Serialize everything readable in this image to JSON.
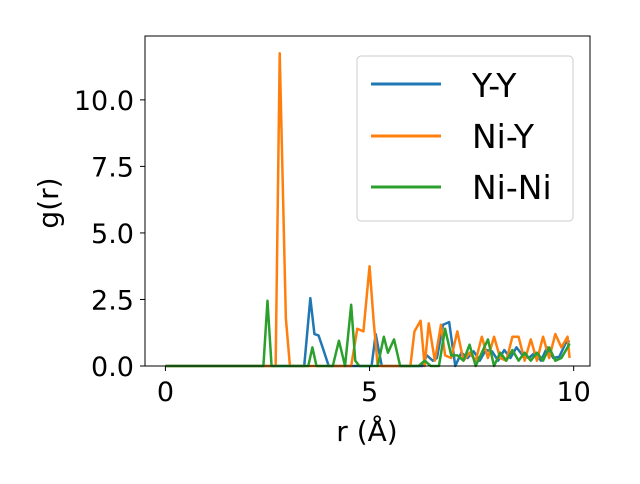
{
  "chart_data": {
    "type": "line",
    "title": "",
    "xlabel": "r (Å)",
    "ylabel": "g(r)",
    "xlim": [
      -0.5,
      10.4
    ],
    "ylim": [
      0,
      12.4
    ],
    "xticks": [
      0,
      5,
      10
    ],
    "xtick_labels": [
      "0",
      "5",
      "10"
    ],
    "yticks": [
      0,
      2.5,
      5,
      7.5,
      10
    ],
    "ytick_labels": [
      "0.0",
      "2.5",
      "5.0",
      "7.5",
      "10.0"
    ],
    "grid": false,
    "legend_position": "upper right",
    "series": [
      {
        "name": "Y-Y",
        "color": "#1f77b4",
        "x": [
          0,
          3.4,
          3.55,
          3.65,
          3.75,
          3.85,
          4.0,
          5.05,
          5.15,
          5.3,
          6.3,
          6.4,
          6.55,
          6.65,
          6.8,
          6.95,
          7.1,
          7.25,
          7.4,
          7.55,
          7.7,
          7.85,
          8.0,
          8.15,
          8.3,
          8.45,
          8.6,
          8.75,
          8.9,
          9.05,
          9.2,
          9.35,
          9.5,
          9.65,
          9.8,
          9.9
        ],
        "y": [
          0,
          0,
          2.55,
          1.2,
          1.15,
          0.7,
          0,
          0,
          1.2,
          0,
          0,
          0.4,
          0.2,
          0.3,
          1.55,
          1.65,
          0,
          0.5,
          0.3,
          0.55,
          0.2,
          0.6,
          0.55,
          0.2,
          0.6,
          0.3,
          0.7,
          0.4,
          0.3,
          0.5,
          0.2,
          0.7,
          0.3,
          0.35,
          0.85,
          0.95
        ]
      },
      {
        "name": "Ni-Y",
        "color": "#ff7f0e",
        "x": [
          0,
          2.7,
          2.8,
          2.95,
          3.05,
          4.55,
          4.7,
          4.85,
          5.0,
          5.1,
          5.2,
          6.0,
          6.1,
          6.25,
          6.35,
          6.45,
          6.6,
          6.75,
          6.85,
          7.0,
          7.15,
          7.3,
          7.45,
          7.6,
          7.75,
          7.9,
          8.05,
          8.2,
          8.35,
          8.5,
          8.65,
          8.8,
          8.95,
          9.1,
          9.25,
          9.4,
          9.55,
          9.7,
          9.85,
          9.9
        ],
        "y": [
          0,
          0,
          11.75,
          1.8,
          0,
          0,
          1.4,
          1.3,
          3.75,
          1.7,
          0,
          0,
          1.3,
          1.7,
          0,
          1.6,
          0.2,
          1.55,
          0.4,
          0.3,
          1.3,
          0.2,
          0.5,
          0.2,
          1.1,
          0.3,
          1.1,
          0.3,
          0.2,
          1.1,
          1.1,
          0.2,
          1.0,
          0.2,
          1.1,
          0.3,
          1.2,
          0.7,
          1.1,
          0.3
        ]
      },
      {
        "name": "Ni-Ni",
        "color": "#2ca02c",
        "x": [
          0,
          2.4,
          2.5,
          2.6,
          3.0,
          3.2,
          3.35,
          3.5,
          3.6,
          3.7,
          3.8,
          4.1,
          4.25,
          4.4,
          4.55,
          4.65,
          4.75,
          5.2,
          5.35,
          5.45,
          5.6,
          5.75,
          6.2,
          6.35,
          6.5,
          6.7,
          6.85,
          7.0,
          7.15,
          7.3,
          7.45,
          7.6,
          7.75,
          7.9,
          8.05,
          8.2,
          8.35,
          8.5,
          8.65,
          8.8,
          8.95,
          9.1,
          9.25,
          9.4,
          9.55,
          9.7,
          9.85,
          9.9
        ],
        "y": [
          0,
          0,
          2.45,
          0,
          0,
          0,
          0,
          0,
          0.7,
          0,
          0,
          0,
          0.95,
          0,
          2.3,
          0.2,
          0,
          0,
          1.1,
          0.5,
          1.0,
          0,
          0,
          0.2,
          0,
          0,
          1.4,
          0.4,
          0.4,
          0.2,
          0.8,
          0,
          0.5,
          1.0,
          0,
          0.5,
          0.2,
          0.6,
          0.2,
          0.5,
          0.2,
          0.5,
          0.2,
          0.7,
          0.2,
          0.3,
          0.7,
          0.85
        ]
      }
    ]
  }
}
